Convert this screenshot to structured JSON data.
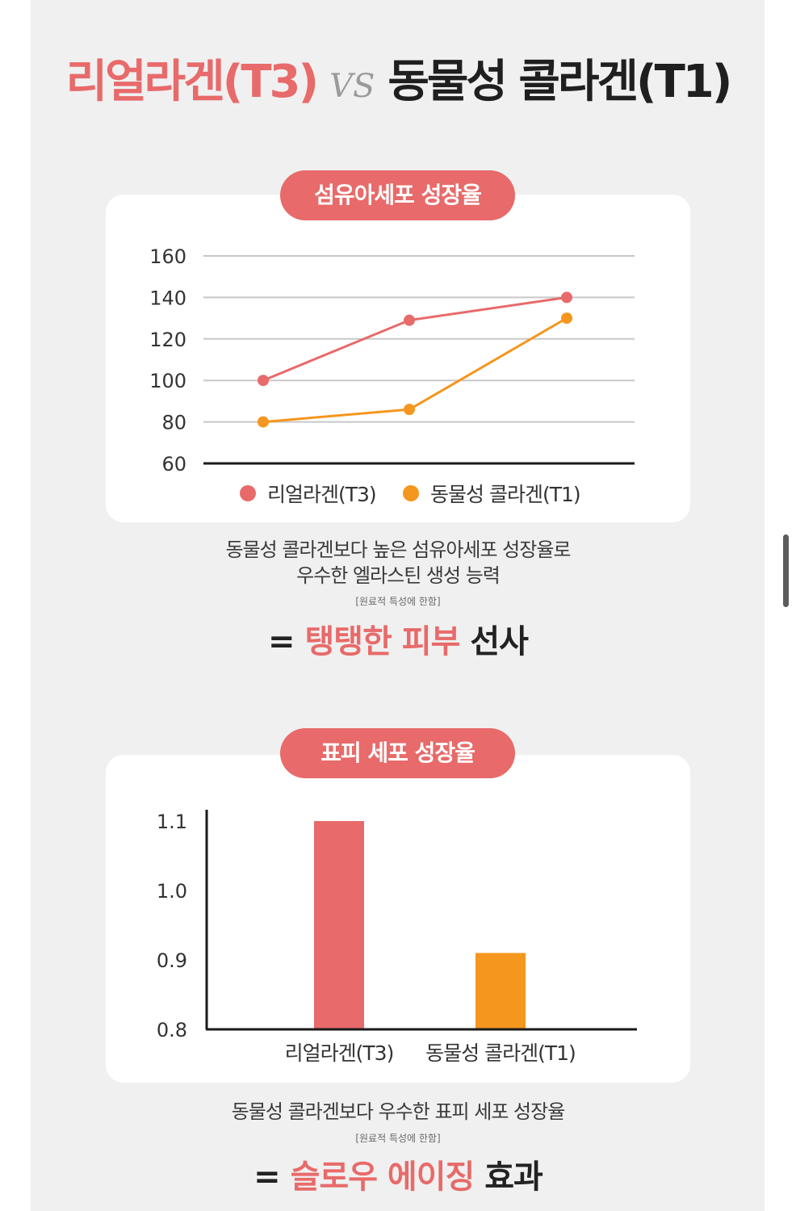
{
  "headline": {
    "part1": "리얼라겐(T3)",
    "vs": "VS",
    "part2": "동물성 콜라겐(T1)"
  },
  "section1": {
    "pill_label": "섬유아세포 성장율",
    "description_line1": "동물성 콜라겐보다 높은 섬유아세포 성장율로",
    "description_line2": "우수한 엘라스틴 생성 능력",
    "note": "[원료적 특성에 한함]",
    "tagline": {
      "prefix": "= ",
      "highlight": "탱탱한 피부",
      "suffix": " 선사"
    }
  },
  "section2": {
    "pill_label": "표피 세포 성장율",
    "description_line1": "동물성 콜라겐보다 우수한 표피 세포 성장율",
    "note": "[원료적 특성에 한함]",
    "tagline": {
      "prefix": "= ",
      "highlight": "슬로우 에이징",
      "suffix": " 효과"
    }
  },
  "colors": {
    "t3": "#e86a6a",
    "t1": "#f5961e",
    "grid": "#c8c8c8",
    "axis": "#1a1a1a",
    "text": "#333333"
  },
  "chart_data": [
    {
      "type": "line",
      "title": "섬유아세포 성장율",
      "categories": [
        "",
        "",
        ""
      ],
      "series": [
        {
          "name": "리얼라겐(T3)",
          "values": [
            100,
            129,
            140
          ]
        },
        {
          "name": "동물성 콜라겐(T1)",
          "values": [
            80,
            86,
            130
          ]
        }
      ],
      "ylim": [
        60,
        160
      ],
      "yticks": [
        "60",
        "80",
        "100",
        "120",
        "140",
        "160"
      ],
      "grid": true,
      "legend": "bottom"
    },
    {
      "type": "bar",
      "title": "표피 세포 성장율",
      "categories": [
        "리얼라겐(T3)",
        "동물성 콜라겐(T1)"
      ],
      "values": [
        1.1,
        0.91
      ],
      "ylim": [
        0.8,
        1.1
      ],
      "yticks": [
        "0.8",
        "0.9",
        "1.0",
        "1.1"
      ],
      "grid": false
    }
  ]
}
